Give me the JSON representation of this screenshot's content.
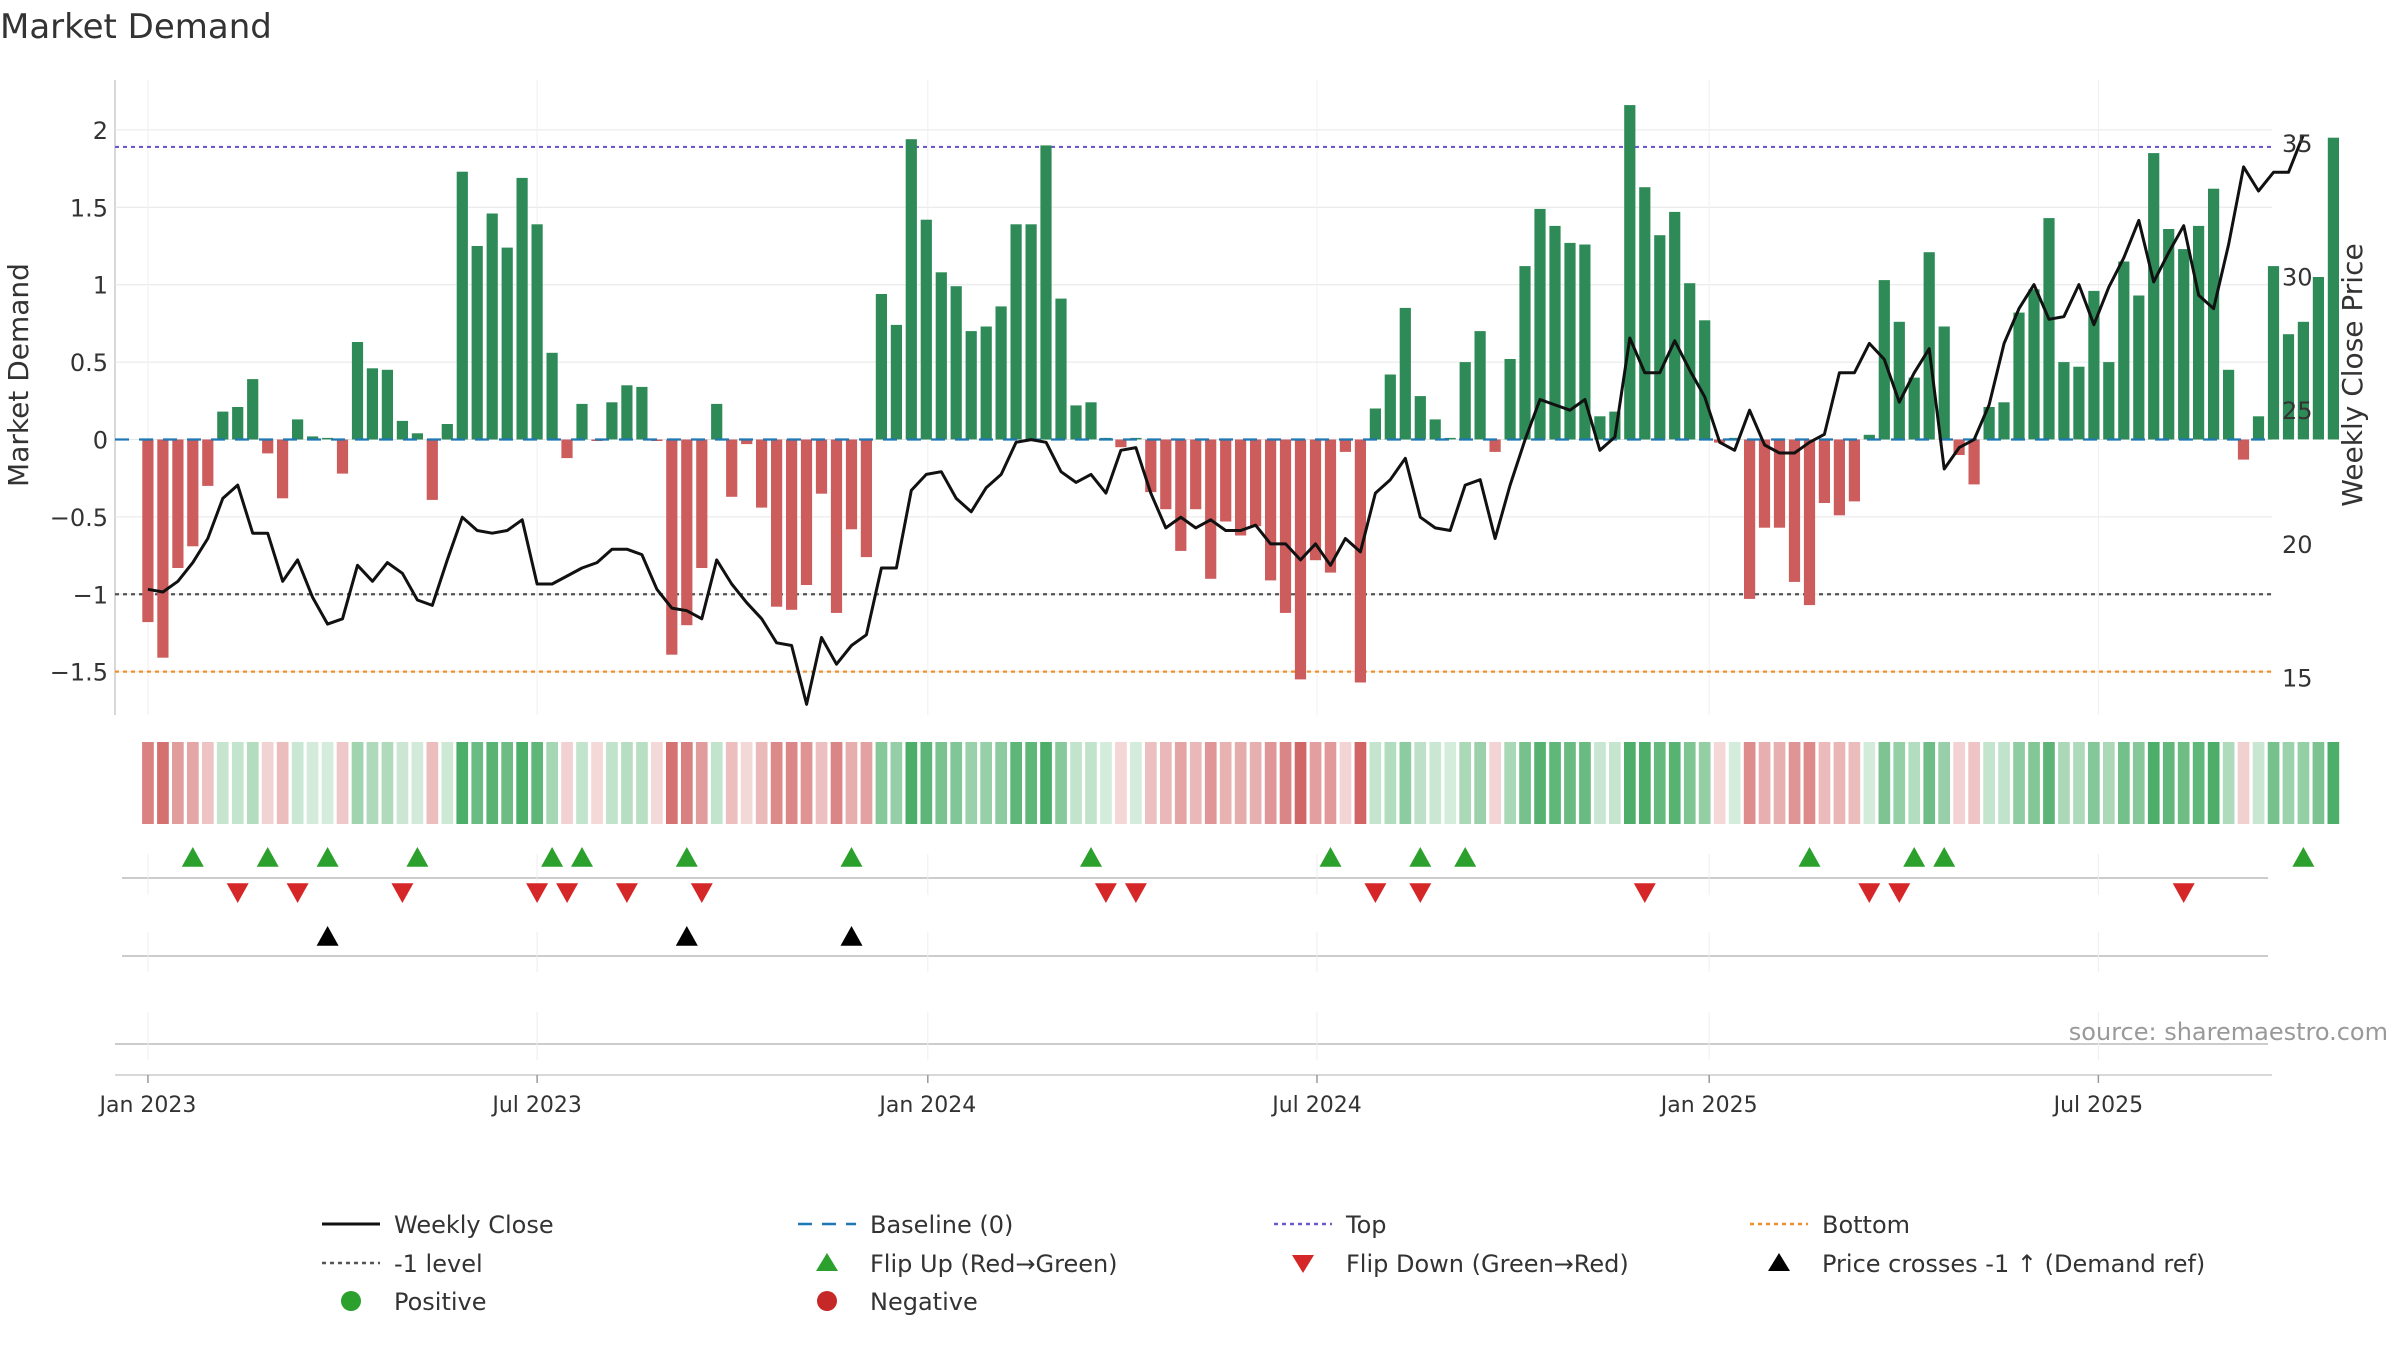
{
  "chart_data": {
    "type": "bar",
    "title": "Market Demand",
    "ylabel": "Market Demand",
    "y2label": "Weekly Close Price",
    "ylim": [
      -1.78,
      2.4
    ],
    "y2lim": [
      13.6,
      37.8
    ],
    "yticks": [
      2,
      1.5,
      1,
      0.5,
      0,
      -0.5,
      -1,
      -1.5
    ],
    "ytick_labels": [
      "2",
      "1.5",
      "1",
      "0.5",
      "0",
      "−0.5",
      "−1",
      "−1.5"
    ],
    "y2ticks": [
      35,
      30,
      25,
      20,
      15
    ],
    "y2tick_labels": [
      "35",
      "30",
      "25",
      "20",
      "15"
    ],
    "x_range_weeks": [
      -2.2,
      141.9
    ],
    "xtick_weeks": [
      0,
      26,
      52.1,
      78.1,
      104.3,
      130.3
    ],
    "xtick_labels": [
      "Jan 2023",
      "Jul 2023",
      "Jan 2024",
      "Jul 2024",
      "Jan 2025",
      "Jul 2025"
    ],
    "reference_lines": {
      "top": 1.89,
      "bottom": -1.5,
      "minus_one": -1,
      "baseline": 0
    },
    "demand": [
      -1.18,
      -1.41,
      -0.83,
      -0.69,
      -0.3,
      0.18,
      0.21,
      0.39,
      -0.09,
      -0.38,
      0.13,
      0.02,
      0.01,
      -0.22,
      0.63,
      0.46,
      0.45,
      0.12,
      0.04,
      -0.39,
      0.1,
      1.73,
      1.25,
      1.46,
      1.24,
      1.69,
      1.39,
      0.56,
      -0.12,
      0.23,
      -0.01,
      0.24,
      0.35,
      0.34,
      -0.01,
      -1.39,
      -1.2,
      -0.83,
      0.23,
      -0.37,
      -0.03,
      -0.44,
      -1.08,
      -1.1,
      -0.94,
      -0.35,
      -1.12,
      -0.58,
      -0.76,
      0.94,
      0.74,
      1.94,
      1.42,
      1.08,
      0.99,
      0.7,
      0.73,
      0.86,
      1.39,
      1.39,
      1.9,
      0.91,
      0.22,
      0.24,
      0.01,
      -0.05,
      0.01,
      -0.34,
      -0.45,
      -0.72,
      -0.45,
      -0.9,
      -0.53,
      -0.62,
      -0.56,
      -0.91,
      -1.12,
      -1.55,
      -0.78,
      -0.86,
      -0.08,
      -1.57,
      0.2,
      0.42,
      0.85,
      0.28,
      0.13,
      0.01,
      0.5,
      0.7,
      -0.08,
      0.52,
      1.12,
      1.49,
      1.38,
      1.27,
      1.26,
      0.15,
      0.18,
      2.16,
      1.63,
      1.32,
      1.47,
      1.01,
      0.77,
      -0.02,
      0.01,
      -1.03,
      -0.57,
      -0.57,
      -0.92,
      -1.07,
      -0.41,
      -0.49,
      -0.4,
      0.03,
      1.03,
      0.76,
      0.4,
      1.21,
      0.73,
      -0.1,
      -0.29,
      0.21,
      0.24,
      0.82,
      0.97,
      1.43,
      0.5,
      0.47,
      0.96,
      0.5,
      1.15,
      0.93,
      1.85,
      1.36,
      1.23,
      1.38,
      1.62,
      0.45,
      -0.13,
      0.15,
      1.12,
      0.68,
      0.76,
      1.05,
      1.95
    ],
    "price": [
      18.3,
      18.2,
      18.6,
      19.3,
      20.2,
      21.7,
      22.2,
      20.4,
      20.4,
      18.6,
      19.4,
      18.0,
      17.0,
      17.2,
      19.2,
      18.6,
      19.3,
      18.9,
      17.9,
      17.7,
      19.4,
      21.0,
      20.5,
      20.4,
      20.5,
      20.9,
      18.5,
      18.5,
      18.8,
      19.1,
      19.3,
      19.8,
      19.8,
      19.6,
      18.3,
      17.6,
      17.5,
      17.2,
      19.4,
      18.5,
      17.8,
      17.2,
      16.3,
      16.2,
      14.0,
      16.5,
      15.5,
      16.2,
      16.6,
      19.1,
      19.1,
      22.0,
      22.6,
      22.7,
      21.7,
      21.2,
      22.1,
      22.6,
      23.8,
      23.9,
      23.8,
      22.7,
      22.3,
      22.6,
      21.9,
      23.5,
      23.6,
      21.9,
      20.6,
      21.0,
      20.6,
      20.9,
      20.5,
      20.5,
      20.7,
      20.0,
      20.0,
      19.4,
      20.0,
      19.2,
      20.2,
      19.7,
      21.9,
      22.4,
      23.2,
      21.0,
      20.6,
      20.5,
      22.2,
      22.4,
      20.2,
      22.2,
      23.9,
      25.4,
      25.2,
      25.0,
      25.4,
      23.5,
      24.0,
      27.7,
      26.4,
      26.4,
      27.6,
      26.5,
      25.5,
      23.8,
      23.5,
      25.0,
      23.7,
      23.4,
      23.4,
      23.8,
      24.1,
      26.4,
      26.4,
      27.5,
      26.9,
      25.3,
      26.4,
      27.3,
      22.8,
      23.6,
      23.9,
      25.2,
      27.5,
      28.8,
      29.7,
      28.4,
      28.5,
      29.7,
      28.2,
      29.6,
      30.7,
      32.1,
      29.8,
      30.9,
      31.9,
      29.3,
      28.8,
      31.2,
      34.1,
      33.2,
      33.9,
      33.9,
      35.3
    ],
    "flip_up": [
      3,
      8,
      12,
      18,
      27,
      29,
      36,
      47,
      63,
      79,
      85,
      88,
      111,
      118,
      120,
      144
    ],
    "flip_down": [
      6,
      10,
      17,
      26,
      28,
      32,
      37,
      64,
      66,
      82,
      85,
      100,
      115,
      117,
      136
    ],
    "price_crosses": [
      12,
      36,
      47
    ],
    "legend": [
      {
        "label": "Weekly Close",
        "kind": "solid-line",
        "color": "#111111"
      },
      {
        "label": "Baseline (0)",
        "kind": "dashed-line",
        "color": "#1f77b4"
      },
      {
        "label": "Top",
        "kind": "dotted-line",
        "color": "#6a5acd"
      },
      {
        "label": "Bottom",
        "kind": "dotted-line",
        "color": "#f0902a"
      },
      {
        "label": "-1 level",
        "kind": "dotted-line",
        "color": "#555555"
      },
      {
        "label": "Flip Up (Red→Green)",
        "kind": "triangle-up",
        "color": "#2ca02c"
      },
      {
        "label": "Flip Down (Green→Red)",
        "kind": "triangle-down",
        "color": "#d62728"
      },
      {
        "label": "Price crosses -1 ↑ (Demand ref)",
        "kind": "triangle-up",
        "color": "#000000"
      },
      {
        "label": "Positive",
        "kind": "circle",
        "color": "#2ca02c"
      },
      {
        "label": "Negative",
        "kind": "circle",
        "color": "#c62828"
      }
    ],
    "colors": {
      "positive": "#2e8b57",
      "negative": "#cd5c5c",
      "price": "#111111",
      "grid": "#e6e6e6"
    }
  },
  "source": "source: sharemaestro.com"
}
